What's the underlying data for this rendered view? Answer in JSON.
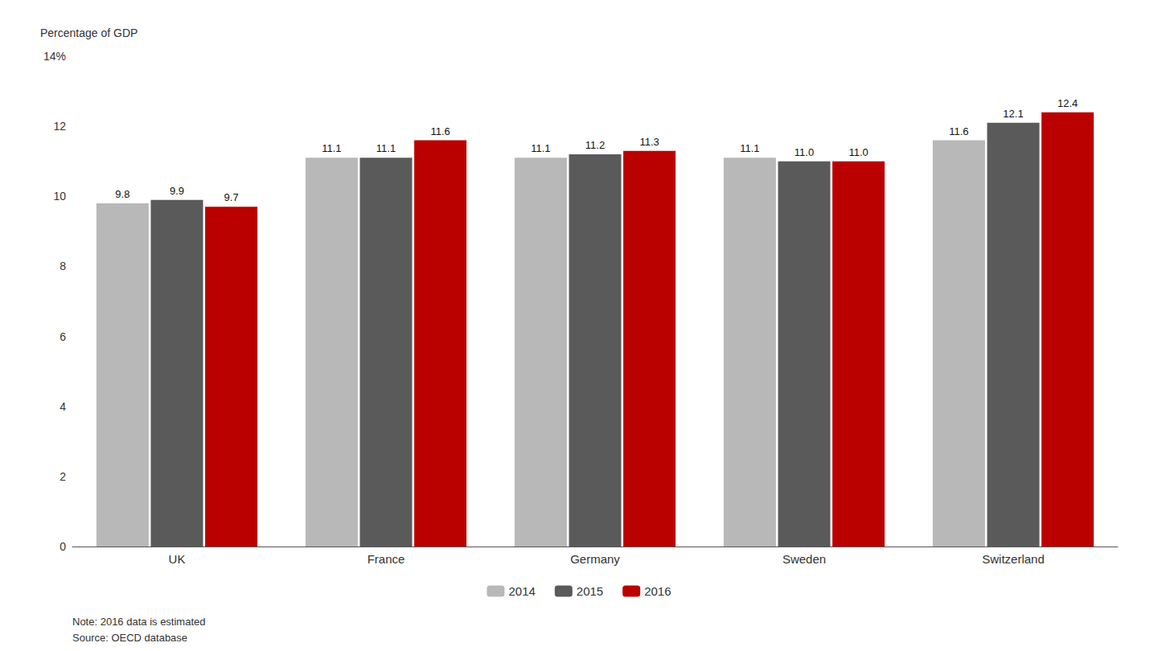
{
  "chart_data": {
    "type": "bar",
    "ylabel": "Percentage of GDP",
    "categories": [
      "UK",
      "France",
      "Germany",
      "Sweden",
      "Switzerland"
    ],
    "series": [
      {
        "name": "2014",
        "color": "#b8b8b8",
        "values": [
          9.8,
          11.1,
          11.1,
          11.1,
          11.6
        ],
        "value_labels": [
          "9.8",
          "11.1",
          "11.1",
          "11.1",
          "11.6"
        ]
      },
      {
        "name": "2015",
        "color": "#5a5a5a",
        "values": [
          9.9,
          11.1,
          11.2,
          11.0,
          12.1
        ],
        "value_labels": [
          "9.9",
          "11.1",
          "11.2",
          "11.0",
          "12.1"
        ]
      },
      {
        "name": "2016",
        "color": "#bb0000",
        "values": [
          9.7,
          11.6,
          11.3,
          11.0,
          12.4
        ],
        "value_labels": [
          "9.7",
          "11.6",
          "11.3",
          "11.0",
          "12.4"
        ]
      }
    ],
    "ylim": [
      0,
      14
    ],
    "yticks": [
      0,
      2,
      4,
      6,
      8,
      10,
      12,
      {
        "value": 14,
        "label": "14%"
      }
    ],
    "annotations": [
      "Note: 2016 data is estimated",
      "Source: OECD database"
    ],
    "grid": false,
    "legend": "bottom",
    "data_labels": true
  }
}
